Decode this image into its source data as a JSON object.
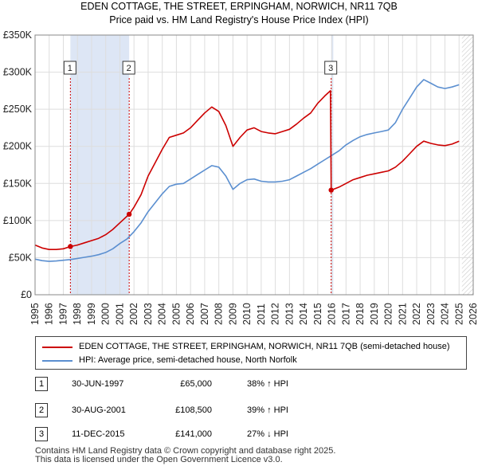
{
  "header": {
    "title_line1": "EDEN COTTAGE, THE STREET, ERPINGHAM, NORWICH, NR11 7QB",
    "title_line2": "Price paid vs. HM Land Registry's House Price Index (HPI)"
  },
  "chart_data": {
    "type": "line",
    "xlim": [
      1995,
      2026
    ],
    "ylim": [
      0,
      350000
    ],
    "y_ticks": [
      {
        "value": 0,
        "label": "£0"
      },
      {
        "value": 50000,
        "label": "£50K"
      },
      {
        "value": 100000,
        "label": "£100K"
      },
      {
        "value": 150000,
        "label": "£150K"
      },
      {
        "value": 200000,
        "label": "£200K"
      },
      {
        "value": 250000,
        "label": "£250K"
      },
      {
        "value": 300000,
        "label": "£300K"
      },
      {
        "value": 350000,
        "label": "£350K"
      }
    ],
    "x_ticks": [
      "1995",
      "1996",
      "1997",
      "1998",
      "1999",
      "2000",
      "2001",
      "2002",
      "2003",
      "2004",
      "2005",
      "2006",
      "2007",
      "2008",
      "2009",
      "2010",
      "2011",
      "2012",
      "2013",
      "2014",
      "2015",
      "2016",
      "2017",
      "2018",
      "2019",
      "2020",
      "2021",
      "2022",
      "2023",
      "2024",
      "2025",
      "2026"
    ],
    "grid": true,
    "shaded_periods": [
      [
        1997.5,
        2001.66
      ],
      [
        2015.95,
        2016.1
      ]
    ],
    "forecast_start": 2025.2,
    "series": [
      {
        "name": "EDEN COTTAGE, THE STREET, ERPINGHAM, NORWICH, NR11 7QB (semi-detached house)",
        "color": "#cc0000",
        "points": [
          [
            1995.0,
            67000
          ],
          [
            1995.5,
            63000
          ],
          [
            1996.0,
            61000
          ],
          [
            1996.5,
            61000
          ],
          [
            1997.0,
            62000
          ],
          [
            1997.5,
            65000
          ],
          [
            1998.0,
            67000
          ],
          [
            1998.5,
            70000
          ],
          [
            1999.0,
            73000
          ],
          [
            1999.5,
            76000
          ],
          [
            2000.0,
            81000
          ],
          [
            2000.5,
            88000
          ],
          [
            2001.0,
            97000
          ],
          [
            2001.66,
            108500
          ],
          [
            2002.0,
            118000
          ],
          [
            2002.5,
            135000
          ],
          [
            2003.0,
            160000
          ],
          [
            2003.5,
            178000
          ],
          [
            2004.0,
            196000
          ],
          [
            2004.5,
            212000
          ],
          [
            2005.0,
            215000
          ],
          [
            2005.5,
            218000
          ],
          [
            2006.0,
            225000
          ],
          [
            2006.5,
            235000
          ],
          [
            2007.0,
            245000
          ],
          [
            2007.5,
            253000
          ],
          [
            2008.0,
            247000
          ],
          [
            2008.5,
            228000
          ],
          [
            2009.0,
            200000
          ],
          [
            2009.5,
            212000
          ],
          [
            2010.0,
            222000
          ],
          [
            2010.5,
            225000
          ],
          [
            2011.0,
            220000
          ],
          [
            2011.5,
            218000
          ],
          [
            2012.0,
            217000
          ],
          [
            2012.5,
            220000
          ],
          [
            2013.0,
            223000
          ],
          [
            2013.5,
            230000
          ],
          [
            2014.0,
            238000
          ],
          [
            2014.5,
            245000
          ],
          [
            2015.0,
            258000
          ],
          [
            2015.5,
            268000
          ],
          [
            2015.9,
            275000
          ],
          [
            2015.95,
            141000
          ],
          [
            2016.5,
            145000
          ],
          [
            2017.0,
            150000
          ],
          [
            2017.5,
            155000
          ],
          [
            2018.0,
            158000
          ],
          [
            2018.5,
            161000
          ],
          [
            2019.0,
            163000
          ],
          [
            2019.5,
            165000
          ],
          [
            2020.0,
            167000
          ],
          [
            2020.5,
            172000
          ],
          [
            2021.0,
            180000
          ],
          [
            2021.5,
            190000
          ],
          [
            2022.0,
            200000
          ],
          [
            2022.5,
            207000
          ],
          [
            2023.0,
            204000
          ],
          [
            2023.5,
            202000
          ],
          [
            2024.0,
            201000
          ],
          [
            2024.5,
            203000
          ],
          [
            2025.0,
            207000
          ]
        ]
      },
      {
        "name": "HPI: Average price, semi-detached house, North Norfolk",
        "color": "#5b8fd0",
        "points": [
          [
            1995.0,
            48000
          ],
          [
            1995.5,
            46000
          ],
          [
            1996.0,
            45000
          ],
          [
            1996.5,
            45500
          ],
          [
            1997.0,
            46500
          ],
          [
            1997.5,
            47500
          ],
          [
            1998.0,
            49000
          ],
          [
            1998.5,
            50500
          ],
          [
            1999.0,
            52000
          ],
          [
            1999.5,
            54000
          ],
          [
            2000.0,
            57000
          ],
          [
            2000.5,
            62000
          ],
          [
            2001.0,
            69000
          ],
          [
            2001.5,
            75000
          ],
          [
            2002.0,
            85000
          ],
          [
            2002.5,
            97000
          ],
          [
            2003.0,
            112000
          ],
          [
            2003.5,
            124000
          ],
          [
            2004.0,
            136000
          ],
          [
            2004.5,
            146000
          ],
          [
            2005.0,
            149000
          ],
          [
            2005.5,
            150000
          ],
          [
            2006.0,
            156000
          ],
          [
            2006.5,
            162000
          ],
          [
            2007.0,
            168000
          ],
          [
            2007.5,
            174000
          ],
          [
            2008.0,
            172000
          ],
          [
            2008.5,
            160000
          ],
          [
            2009.0,
            142000
          ],
          [
            2009.5,
            150000
          ],
          [
            2010.0,
            155000
          ],
          [
            2010.5,
            156000
          ],
          [
            2011.0,
            153000
          ],
          [
            2011.5,
            152000
          ],
          [
            2012.0,
            152000
          ],
          [
            2012.5,
            153000
          ],
          [
            2013.0,
            155000
          ],
          [
            2013.5,
            160000
          ],
          [
            2014.0,
            165000
          ],
          [
            2014.5,
            170000
          ],
          [
            2015.0,
            176000
          ],
          [
            2015.5,
            182000
          ],
          [
            2016.0,
            188000
          ],
          [
            2016.5,
            194000
          ],
          [
            2017.0,
            202000
          ],
          [
            2017.5,
            208000
          ],
          [
            2018.0,
            213000
          ],
          [
            2018.5,
            216000
          ],
          [
            2019.0,
            218000
          ],
          [
            2019.5,
            220000
          ],
          [
            2020.0,
            222000
          ],
          [
            2020.5,
            232000
          ],
          [
            2021.0,
            250000
          ],
          [
            2021.5,
            265000
          ],
          [
            2022.0,
            280000
          ],
          [
            2022.5,
            290000
          ],
          [
            2023.0,
            285000
          ],
          [
            2023.5,
            280000
          ],
          [
            2024.0,
            278000
          ],
          [
            2024.5,
            280000
          ],
          [
            2025.0,
            283000
          ]
        ]
      }
    ],
    "sales_markers": [
      {
        "label": "1",
        "x": 1997.5,
        "y": 65000
      },
      {
        "label": "2",
        "x": 2001.66,
        "y": 108500
      },
      {
        "label": "3",
        "x": 2015.95,
        "y": 141000
      }
    ]
  },
  "legend": {
    "property_label": "EDEN COTTAGE, THE STREET, ERPINGHAM, NORWICH, NR11 7QB (semi-detached house)",
    "hpi_label": "HPI: Average price, semi-detached house, North Norfolk"
  },
  "sales": [
    {
      "num": "1",
      "date": "30-JUN-1997",
      "price": "£65,000",
      "hpi": "38% ↑ HPI"
    },
    {
      "num": "2",
      "date": "30-AUG-2001",
      "price": "£108,500",
      "hpi": "39% ↑ HPI"
    },
    {
      "num": "3",
      "date": "11-DEC-2015",
      "price": "£141,000",
      "hpi": "27% ↓ HPI"
    }
  ],
  "footer": {
    "text": "Contains HM Land Registry data © Crown copyright and database right 2025.\nThis data is licensed under the Open Government Licence v3.0."
  },
  "colors": {
    "property": "#cc0000",
    "hpi": "#5b8fd0",
    "shade": "#dde6f5",
    "grid": "#dddddd"
  }
}
